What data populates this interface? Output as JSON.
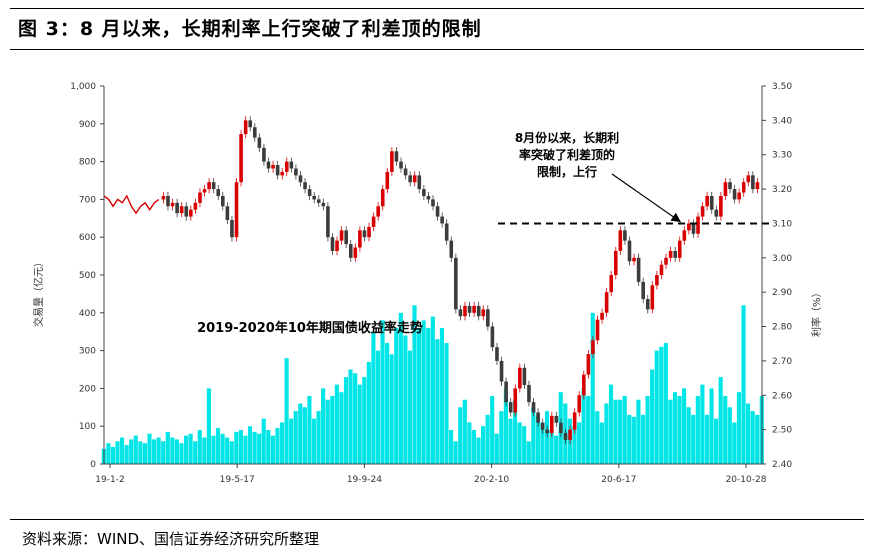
{
  "header": {
    "title": "图 3：8 月以来，长期利率上行突破了利差顶的限制"
  },
  "footer": {
    "source": "资料来源：WIND、国信证券经济研究所整理"
  },
  "chart_data": {
    "type": "bar",
    "title": "2019-2020年10年期国债收益率走势",
    "annotation": "8月份以来，长期利率突破了利差顶的限制，上行",
    "annotation_lines": [
      "8月份以来，长期利",
      "率突破了利差顶的",
      "限制，上行"
    ],
    "y_left_label": "交易量（亿元）",
    "y_right_label": "利率（%）",
    "y_left_ticks": [
      "0",
      "100",
      "200",
      "300",
      "400",
      "500",
      "600",
      "700",
      "800",
      "900",
      "1,000"
    ],
    "y_right_ticks": [
      "2.40",
      "2.50",
      "2.60",
      "2.70",
      "2.80",
      "2.90",
      "3.00",
      "3.10",
      "3.20",
      "3.30",
      "3.40",
      "3.50"
    ],
    "x_ticks": [
      "19-1-2",
      "19-5-17",
      "19-9-24",
      "20-2-10",
      "20-6-17",
      "20-10-28"
    ],
    "ylim_left": [
      0,
      1000
    ],
    "ylim_right": [
      2.4,
      3.5
    ],
    "reference_line": 3.1,
    "colors": {
      "volume": "#00e5e5",
      "candle_up": "#d80000",
      "candle_down": "#3c3c3c",
      "reference": "#000000"
    },
    "series": [
      {
        "name": "交易量",
        "type": "bar",
        "axis": "left",
        "values": [
          40,
          55,
          45,
          60,
          70,
          50,
          65,
          75,
          60,
          55,
          80,
          65,
          70,
          60,
          85,
          70,
          65,
          55,
          75,
          80,
          60,
          90,
          70,
          200,
          75,
          95,
          80,
          70,
          60,
          85,
          90,
          75,
          100,
          85,
          80,
          120,
          90,
          75,
          95,
          110,
          280,
          120,
          140,
          160,
          150,
          180,
          120,
          140,
          200,
          170,
          180,
          210,
          190,
          230,
          250,
          240,
          210,
          230,
          270,
          350,
          300,
          380,
          320,
          290,
          360,
          400,
          340,
          300,
          420,
          360,
          380,
          360,
          390,
          330,
          360,
          320,
          90,
          60,
          150,
          170,
          110,
          90,
          70,
          100,
          130,
          180,
          80,
          140,
          200,
          120,
          170,
          110,
          100,
          60,
          150,
          130,
          110,
          140,
          90,
          75,
          190,
          160,
          120,
          100,
          110,
          200,
          180,
          400,
          140,
          110,
          160,
          210,
          170,
          170,
          180,
          130,
          125,
          170,
          130,
          180,
          250,
          300,
          310,
          320,
          170,
          190,
          180,
          200,
          150,
          130,
          180,
          210,
          130,
          200,
          120,
          230,
          180,
          150,
          110,
          190,
          420,
          160,
          140,
          130,
          180
        ]
      },
      {
        "name": "10年期国债收益率",
        "type": "candlestick",
        "axis": "right",
        "values": [
          3.18,
          3.15,
          3.16,
          3.13,
          3.15,
          3.12,
          3.14,
          3.16,
          3.19,
          3.2,
          3.22,
          3.2,
          3.18,
          3.15,
          3.11,
          3.06,
          3.22,
          3.36,
          3.4,
          3.38,
          3.35,
          3.32,
          3.28,
          3.26,
          3.27,
          3.24,
          3.25,
          3.28,
          3.26,
          3.24,
          3.22,
          3.2,
          3.18,
          3.17,
          3.16,
          3.15,
          3.06,
          3.02,
          3.05,
          3.08,
          3.04,
          3.0,
          3.03,
          3.08,
          3.06,
          3.09,
          3.12,
          3.15,
          3.2,
          3.25,
          3.31,
          3.28,
          3.26,
          3.24,
          3.22,
          3.24,
          3.2,
          3.18,
          3.17,
          3.15,
          3.12,
          3.1,
          3.05,
          3.0,
          2.85,
          2.83,
          2.86,
          2.84,
          2.86,
          2.83,
          2.85,
          2.8,
          2.74,
          2.7,
          2.64,
          2.58,
          2.55,
          2.62,
          2.68,
          2.63,
          2.58,
          2.55,
          2.52,
          2.5,
          2.49,
          2.54,
          2.52,
          2.49,
          2.47,
          2.5,
          2.55,
          2.6,
          2.66,
          2.72,
          2.76,
          2.82,
          2.84,
          2.9,
          2.95,
          3.02,
          3.08,
          3.05,
          2.99,
          3.0,
          2.93,
          2.88,
          2.85,
          2.92,
          2.95,
          2.98,
          3.0,
          3.02,
          3.0,
          3.05,
          3.08,
          3.1,
          3.07,
          3.12,
          3.15,
          3.18,
          3.14,
          3.12,
          3.18,
          3.22,
          3.2,
          3.17,
          3.19,
          3.22,
          3.24,
          3.2,
          3.22
        ]
      }
    ],
    "x_range": [
      1,
      145
    ],
    "series_x": "trading-day index; bar n = day n, candle k = day k+13 (days 1–13 are shown only as a line)",
    "early_line": [
      3.18,
      3.17,
      3.15,
      3.17,
      3.16,
      3.18,
      3.15,
      3.13,
      3.15,
      3.16,
      3.14,
      3.16,
      3.17
    ]
  }
}
